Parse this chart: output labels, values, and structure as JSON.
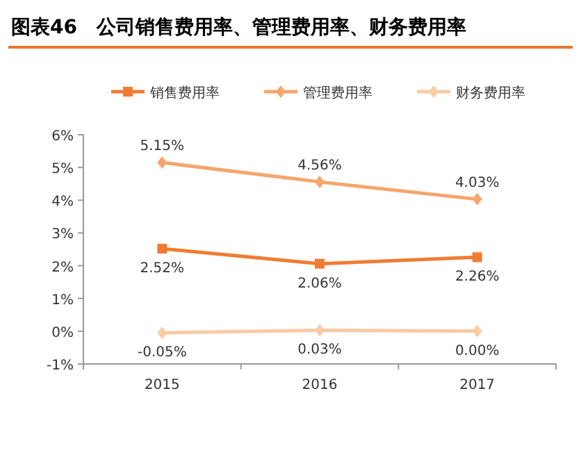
{
  "chart_data": {
    "type": "line",
    "title": "图表46　公司销售费用率、管理费用率、财务费用率",
    "categories": [
      "2015",
      "2016",
      "2017"
    ],
    "series": [
      {
        "name": "销售费用率",
        "color": "#f07c32",
        "marker": "square",
        "values": [
          2.52,
          2.06,
          2.26
        ],
        "value_labels": [
          "2.52%",
          "2.06%",
          "2.26%"
        ]
      },
      {
        "name": "管理费用率",
        "color": "#f5a66c",
        "marker": "diamond",
        "values": [
          5.15,
          4.56,
          4.03
        ],
        "value_labels": [
          "5.15%",
          "4.56%",
          "4.03%"
        ]
      },
      {
        "name": "财务费用率",
        "color": "#f9cba6",
        "marker": "diamond",
        "values": [
          -0.05,
          0.03,
          0.0
        ],
        "value_labels": [
          "-0.05%",
          "0.03%",
          "0.00%"
        ]
      }
    ],
    "ylim": [
      -1,
      6
    ],
    "yticks": [
      {
        "value": -1,
        "label": "-1%"
      },
      {
        "value": 0,
        "label": "0%"
      },
      {
        "value": 1,
        "label": "1%"
      },
      {
        "value": 2,
        "label": "2%"
      },
      {
        "value": 3,
        "label": "3%"
      },
      {
        "value": 4,
        "label": "4%"
      },
      {
        "value": 5,
        "label": "5%"
      },
      {
        "value": 6,
        "label": "6%"
      }
    ],
    "grid": false,
    "legend": "top"
  }
}
